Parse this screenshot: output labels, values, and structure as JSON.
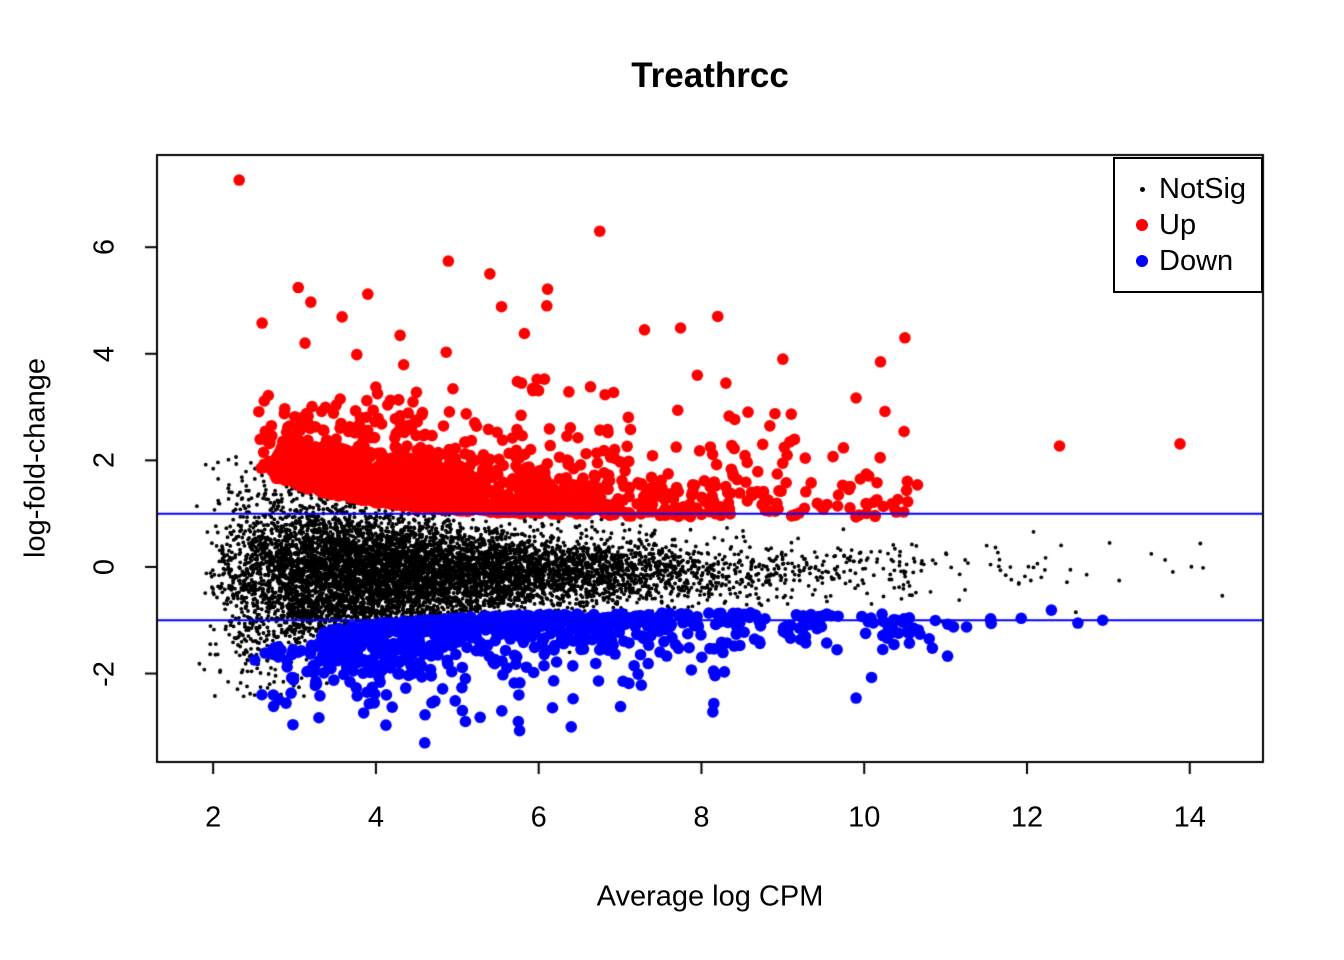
{
  "chart_data": {
    "type": "scatter",
    "subtype": "MA-plot (mean-difference plot)",
    "title": "Treathrcc",
    "xlabel": "Average log CPM",
    "ylabel": "log-fold-change",
    "xlim": [
      1.31,
      14.9
    ],
    "ylim": [
      -3.66,
      7.73
    ],
    "x_ticks": [
      2,
      4,
      6,
      8,
      10,
      12,
      14
    ],
    "y_ticks": [
      -2,
      0,
      2,
      4,
      6
    ],
    "grid": false,
    "background": "#ffffff",
    "box_color": "#000000",
    "hlines": {
      "values": [
        1,
        -1
      ],
      "color": "#0000ff",
      "width": 2
    },
    "legend": {
      "position": "top-right",
      "entries": [
        {
          "label": "NotSig",
          "color": "#000000",
          "diameter": 5
        },
        {
          "label": "Up",
          "color": "#ff0000",
          "diameter": 12
        },
        {
          "label": "Down",
          "color": "#0000ff",
          "diameter": 12
        }
      ]
    },
    "seed": 1337,
    "series": [
      {
        "name": "NotSig",
        "color": "#000000",
        "radius": 1.9,
        "clouds": [
          {
            "n": 8200,
            "x": {
              "base": 1.78,
              "scale": 0.98,
              "k": 3,
              "min": 1.72,
              "max": 14.55
            },
            "y": {
              "kind": "normal",
              "mu": -0.1,
              "s0": 0.26,
              "s1": 0.85,
              "s2": 0.5,
              "min": -2.45,
              "max": 2.1
            }
          }
        ],
        "points": [
          [
            14.4,
            -0.54
          ],
          [
            12.08,
            0.66
          ],
          [
            1.8,
            1.14
          ],
          [
            11.9,
            -0.3
          ],
          [
            12.6,
            -0.85
          ]
        ]
      },
      {
        "name": "Up",
        "color": "#ff0000",
        "radius": 5.8,
        "clouds": [
          {
            "n": 1150,
            "x": {
              "base": 2.55,
              "scale": 1.15,
              "k": 2,
              "min": 2.4,
              "max": 10.6
            },
            "y": {
              "kind": "band",
              "b0": 0.93,
              "b1": 1.35,
              "b2": 0.8,
              "m": 0.33,
              "dir": 1,
              "max": 3.4
            }
          },
          {
            "n": 300,
            "x": {
              "base": 2.5,
              "scale": 1.5,
              "k": 2,
              "min": 2.4,
              "max": 10.6
            },
            "y": {
              "kind": "band",
              "b0": 1.15,
              "b1": 1.2,
              "b2": 0.5,
              "m": 0.85,
              "dir": 1,
              "max": 5.3
            }
          },
          {
            "n": 26,
            "x": {
              "base": 8.7,
              "scale": 0.8,
              "k": 1,
              "min": 8.6,
              "max": 10.7
            },
            "y": {
              "kind": "band",
              "b0": 1.05,
              "b1": 0,
              "b2": 1,
              "m": 0.45,
              "dir": 1,
              "max": 3.9
            }
          }
        ],
        "points": [
          [
            2.32,
            7.26
          ],
          [
            6.75,
            6.3
          ],
          [
            4.89,
            5.74
          ],
          [
            5.4,
            5.5
          ],
          [
            3.2,
            4.97
          ],
          [
            3.9,
            5.12
          ],
          [
            12.4,
            2.27
          ],
          [
            13.88,
            2.31
          ],
          [
            10.5,
            4.3
          ],
          [
            9.0,
            3.9
          ],
          [
            10.2,
            3.85
          ],
          [
            9.9,
            3.17
          ],
          [
            8.3,
            3.45
          ],
          [
            8.2,
            4.7
          ],
          [
            6.1,
            4.9
          ],
          [
            7.3,
            4.45
          ]
        ]
      },
      {
        "name": "Down",
        "color": "#0000ff",
        "radius": 5.8,
        "clouds": [
          {
            "n": 680,
            "x": {
              "base": 3.25,
              "scale": 1.3,
              "k": 2,
              "min": 3.2,
              "max": 10.9
            },
            "y": {
              "kind": "band",
              "b0": -0.85,
              "b1": -1.05,
              "b2": 0.8,
              "m": 0.26,
              "dir": -1,
              "min": -2.2
            }
          },
          {
            "n": 70,
            "x": {
              "base": 2.55,
              "scale": 0.5,
              "k": 2,
              "min": 2.5,
              "max": 4.2
            },
            "y": {
              "kind": "band",
              "b0": -1.0,
              "b1": -0.6,
              "b2": 0.25,
              "m": 0.45,
              "dir": -1,
              "min": -2.7
            }
          },
          {
            "n": 90,
            "x": {
              "base": 3.4,
              "scale": 1.0,
              "k": 2,
              "min": 3.4,
              "max": 8.5
            },
            "y": {
              "kind": "band",
              "b0": -1.35,
              "b1": -0.5,
              "b2": 0.4,
              "m": 0.5,
              "dir": -1,
              "min": -3.1
            }
          },
          {
            "n": 24,
            "x": {
              "base": 10.2,
              "scale": 0.9,
              "k": 1,
              "min": 10.2,
              "max": 13.0
            },
            "y": {
              "kind": "band",
              "b0": -0.95,
              "b1": 0,
              "b2": 1,
              "m": 0.25,
              "dir": -1,
              "min": -1.8
            }
          }
        ],
        "points": [
          [
            4.6,
            -3.3
          ],
          [
            2.98,
            -2.96
          ],
          [
            6.4,
            -3.0
          ],
          [
            8.14,
            -2.72
          ],
          [
            9.9,
            -2.46
          ],
          [
            12.93,
            -1.0
          ],
          [
            12.3,
            -0.81
          ],
          [
            3.3,
            -2.83
          ],
          [
            3.85,
            -2.74
          ],
          [
            4.2,
            -2.63
          ],
          [
            5.1,
            -2.9
          ],
          [
            5.75,
            -2.9
          ]
        ]
      }
    ]
  }
}
